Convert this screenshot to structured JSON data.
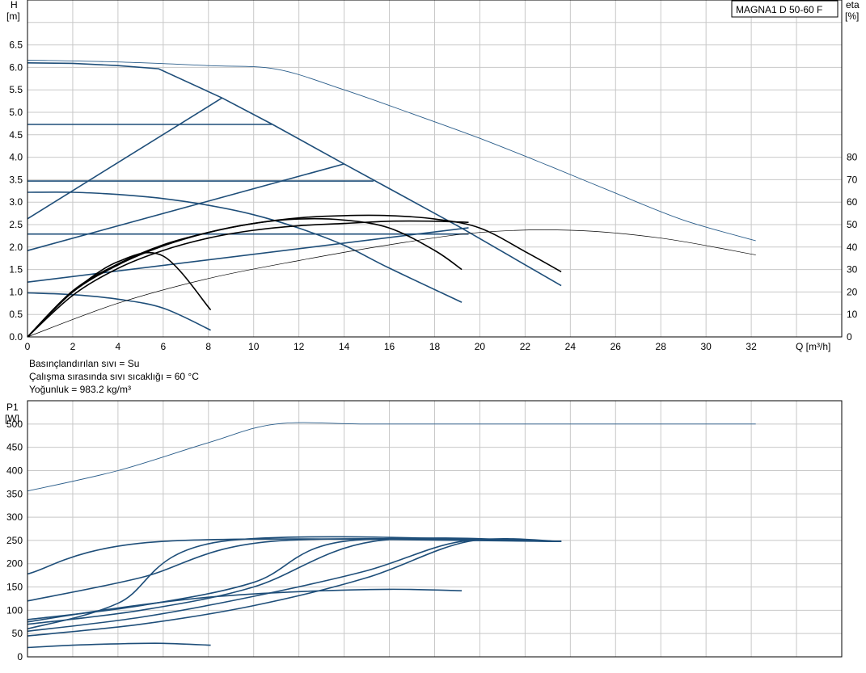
{
  "model_label": "MAGNA1 D 50-60 F",
  "notes": [
    "Basınçlandırılan sıvı = Su",
    "Çalışma sırasında sıvı sıcaklığı = 60 °C",
    "Yoğunluk = 983.2 kg/m³"
  ],
  "colors": {
    "curve": "#1e4e79",
    "thin_curve": "#2a5d8a",
    "efficiency": "#000000",
    "grid": "#c8c8c8"
  },
  "chart_data": [
    {
      "type": "line",
      "title": "",
      "xlabel": "Q [m³/h]",
      "ylabel": "H\n[m]",
      "y2label": "eta\n[%]",
      "xlim": [
        0,
        36
      ],
      "ylim": [
        0,
        7.5
      ],
      "y2lim": [
        0,
        150
      ],
      "x_ticks": [
        0,
        2,
        4,
        6,
        8,
        10,
        12,
        14,
        16,
        18,
        20,
        22,
        24,
        26,
        28,
        30,
        32
      ],
      "y_ticks": [
        0.0,
        0.5,
        1.0,
        1.5,
        2.0,
        2.5,
        3.0,
        3.5,
        4.0,
        4.5,
        5.0,
        5.5,
        6.0,
        6.5
      ],
      "y2_ticks": [
        0,
        10,
        20,
        30,
        40,
        50,
        60,
        70,
        80
      ],
      "grid": true,
      "head_curves": [
        {
          "kind": "max",
          "x": [
            0,
            2,
            4,
            5.8,
            8.6,
            10.8,
            14,
            16,
            19.2,
            23.6
          ],
          "y": [
            6.1,
            6.09,
            6.04,
            5.97,
            5.32,
            4.74,
            3.85,
            3.3,
            2.42,
            1.14
          ]
        },
        {
          "kind": "constant-pressure",
          "x": [
            0,
            10.8
          ],
          "y": [
            4.73,
            4.73
          ]
        },
        {
          "kind": "constant-pressure",
          "x": [
            0,
            15.3
          ],
          "y": [
            3.47,
            3.47
          ]
        },
        {
          "kind": "constant-pressure",
          "x": [
            0,
            19.5
          ],
          "y": [
            2.29,
            2.29
          ]
        },
        {
          "kind": "proportional-pressure",
          "x": [
            0,
            8.6
          ],
          "y": [
            2.63,
            5.32
          ]
        },
        {
          "kind": "proportional-pressure",
          "x": [
            0,
            14
          ],
          "y": [
            1.92,
            3.85
          ]
        },
        {
          "kind": "proportional-pressure",
          "x": [
            0,
            19.5
          ],
          "y": [
            1.22,
            2.43
          ]
        },
        {
          "kind": "fixed-speed",
          "x": [
            0,
            2,
            4,
            6,
            8,
            10,
            12,
            14,
            16,
            19.2
          ],
          "y": [
            3.22,
            3.22,
            3.17,
            3.08,
            2.93,
            2.72,
            2.42,
            2.04,
            1.53,
            0.77
          ]
        },
        {
          "kind": "fixed-speed",
          "x": [
            0,
            2,
            4,
            6,
            8.1
          ],
          "y": [
            0.98,
            0.94,
            0.84,
            0.64,
            0.15
          ]
        },
        {
          "kind": "max-thin",
          "x": [
            0,
            4,
            8,
            11,
            14,
            17,
            20,
            23,
            26,
            29,
            32.2
          ],
          "y": [
            6.16,
            6.12,
            6.04,
            5.96,
            5.5,
            4.97,
            4.42,
            3.82,
            3.2,
            2.6,
            2.14
          ]
        }
      ],
      "efficiency_curves": [
        {
          "x": [
            0,
            2,
            4,
            6,
            8,
            10,
            12,
            14,
            16,
            18,
            20,
            22,
            23.6
          ],
          "eta": [
            0,
            20.5,
            32.5,
            41,
            46.5,
            50.5,
            53,
            54,
            54,
            52.5,
            48.5,
            38,
            29
          ]
        },
        {
          "x": [
            0,
            2,
            4,
            6,
            8,
            10,
            12,
            14,
            16,
            18,
            19.2
          ],
          "eta": [
            0,
            20,
            32,
            40.5,
            46.5,
            50.5,
            52.5,
            52,
            48.5,
            38.5,
            30
          ]
        },
        {
          "x": [
            0,
            2,
            4,
            6,
            8.1
          ],
          "eta": [
            0,
            20,
            33.5,
            36,
            12
          ]
        },
        {
          "x": [
            0,
            2,
            4,
            6,
            8,
            10,
            12,
            14,
            16,
            18,
            19.5
          ],
          "eta": [
            0,
            18.5,
            30.5,
            38.5,
            44,
            47.5,
            49.5,
            50.5,
            51.5,
            51.5,
            51
          ]
        },
        {
          "x": [
            0,
            4,
            8,
            12,
            16,
            20,
            24,
            28,
            32.2
          ],
          "eta": [
            0,
            15,
            26,
            34,
            41,
            46.5,
            47.5,
            44,
            36.5
          ]
        }
      ]
    },
    {
      "type": "line",
      "title": "",
      "xlabel": "",
      "ylabel": "P1\n[W]",
      "xlim": [
        0,
        36
      ],
      "ylim": [
        0,
        550
      ],
      "y_ticks": [
        0,
        50,
        100,
        150,
        200,
        250,
        300,
        350,
        400,
        450,
        500
      ],
      "grid": true,
      "power_curves": [
        {
          "kind": "max-thin",
          "x": [
            0,
            4,
            8,
            11,
            15,
            20,
            25,
            32.2
          ],
          "y": [
            356,
            400,
            460,
            500,
            500,
            500,
            500,
            500
          ]
        },
        {
          "kind": "max",
          "x": [
            0,
            6,
            23.6
          ],
          "y": [
            178,
            248,
            248
          ]
        },
        {
          "kind": "max",
          "x": [
            0,
            4,
            8.6,
            23.6
          ],
          "y": [
            60,
            115,
            248,
            248
          ]
        },
        {
          "kind": "max",
          "x": [
            0,
            5,
            10.8,
            23.6
          ],
          "y": [
            120,
            170,
            248,
            248
          ]
        },
        {
          "kind": "max",
          "x": [
            0,
            5,
            10,
            14,
            23.6
          ],
          "y": [
            80,
            110,
            160,
            248,
            248
          ]
        },
        {
          "kind": "max",
          "x": [
            0,
            5,
            10,
            15.3,
            23.6
          ],
          "y": [
            70,
            100,
            150,
            248,
            248
          ]
        },
        {
          "kind": "max",
          "x": [
            0,
            5,
            10,
            15,
            19.5,
            23.6
          ],
          "y": [
            45,
            70,
            110,
            170,
            248,
            248
          ]
        },
        {
          "kind": "max",
          "x": [
            0,
            5,
            10,
            15,
            19.2,
            23.6
          ],
          "y": [
            55,
            85,
            130,
            185,
            248,
            248
          ]
        },
        {
          "kind": "fixed-speed",
          "x": [
            0,
            4,
            8,
            12,
            16,
            19.2
          ],
          "y": [
            75,
            105,
            128,
            140,
            145,
            142
          ]
        },
        {
          "kind": "fixed-speed",
          "x": [
            0,
            2,
            4,
            6,
            8.1
          ],
          "y": [
            20,
            25,
            28,
            29,
            25
          ]
        }
      ]
    }
  ]
}
